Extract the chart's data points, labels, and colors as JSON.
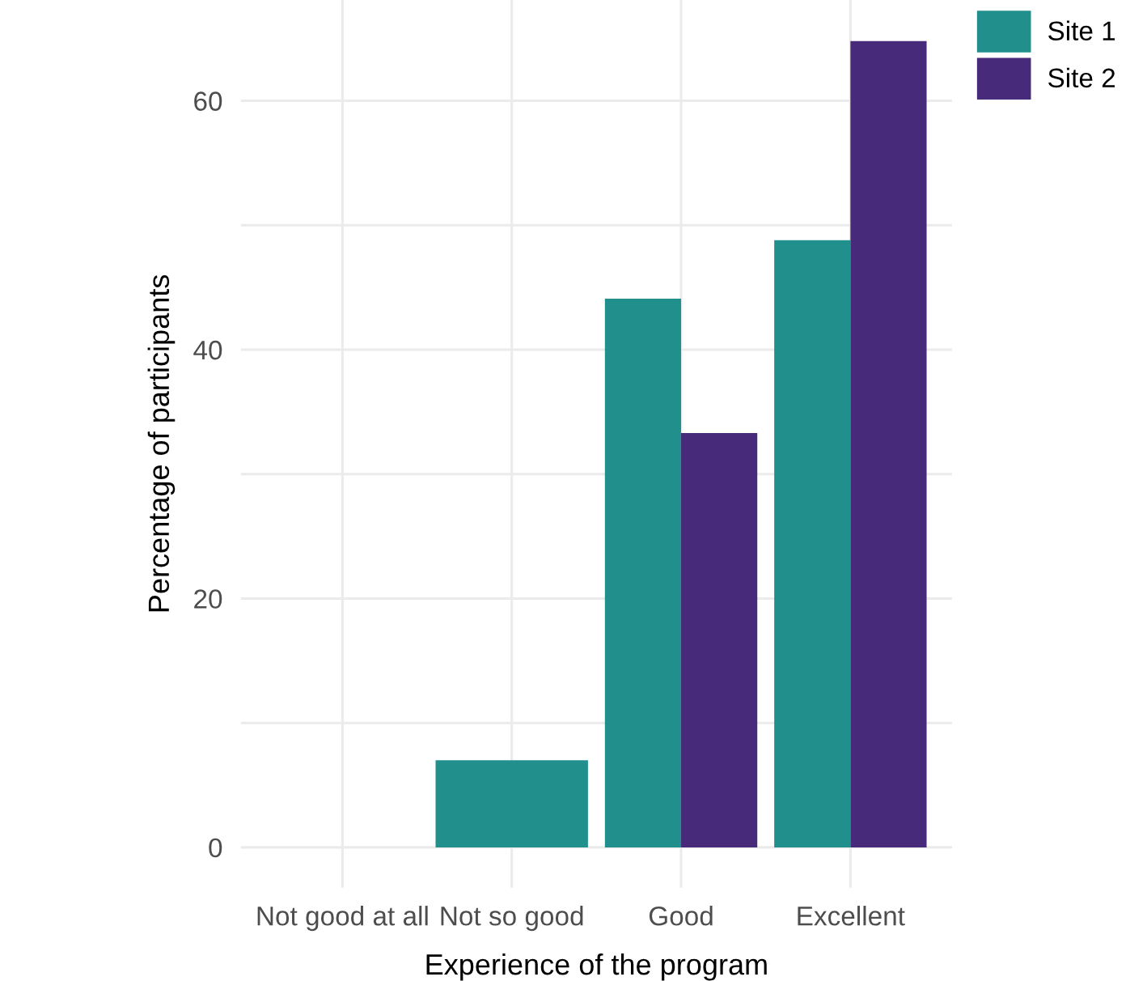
{
  "chart_data": {
    "type": "bar",
    "xlabel": "Experience of the program",
    "ylabel": "Percentage of participants",
    "categories": [
      "Not good at all",
      "Not so good",
      "Good",
      "Excellent"
    ],
    "series": [
      {
        "name": "Site 1",
        "color": "#21908c",
        "values": [
          null,
          7,
          44.1,
          48.8
        ]
      },
      {
        "name": "Site 2",
        "color": "#472a7a",
        "values": [
          null,
          null,
          33.3,
          64.8
        ]
      }
    ],
    "ylim": [
      -3.25,
      68.1
    ],
    "yticks": [
      0,
      {
        "value": 10,
        "label": null
      },
      20,
      {
        "value": 30,
        "label": null
      },
      40,
      {
        "value": 50,
        "label": null
      },
      60
    ],
    "grid": true,
    "legend": "right"
  }
}
